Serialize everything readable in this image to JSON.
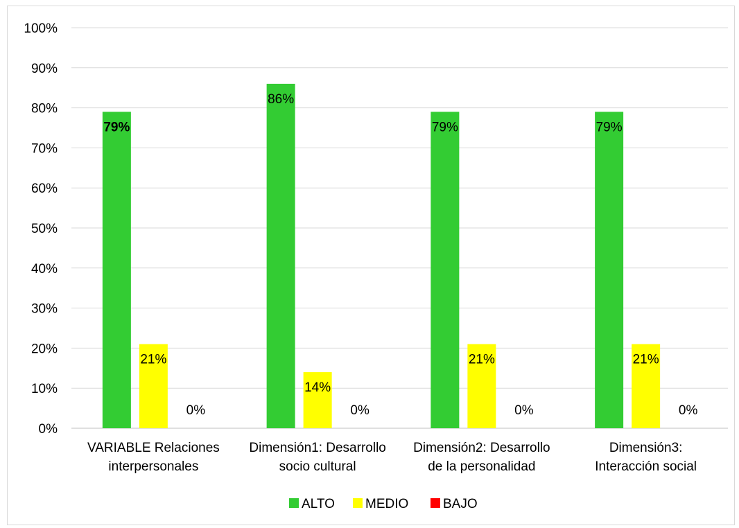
{
  "chart_data": {
    "type": "bar",
    "categories": [
      [
        "VARIABLE Relaciones",
        "interpersonales"
      ],
      [
        "Dimensión1: Desarrollo",
        "socio cultural"
      ],
      [
        "Dimensión2: Desarrollo",
        "de la personalidad"
      ],
      [
        "Dimensión3:",
        "Interacción social"
      ]
    ],
    "series": [
      {
        "name": "ALTO",
        "color": "#33cc33",
        "values": [
          79,
          86,
          79,
          79
        ],
        "labels": [
          "79%",
          "86%",
          "79%",
          "79%"
        ],
        "bold_labels": [
          true,
          false,
          false,
          false
        ]
      },
      {
        "name": "MEDIO",
        "color": "#ffff00",
        "values": [
          21,
          14,
          21,
          21
        ],
        "labels": [
          "21%",
          "14%",
          "21%",
          "21%"
        ],
        "bold_labels": [
          false,
          false,
          false,
          false
        ]
      },
      {
        "name": "BAJO",
        "color": "#ff0000",
        "values": [
          0,
          0,
          0,
          0
        ],
        "labels": [
          "0%",
          "0%",
          "0%",
          "0%"
        ],
        "bold_labels": [
          false,
          false,
          false,
          false
        ]
      }
    ],
    "ylim": [
      0,
      100
    ],
    "yticks": [
      "0%",
      "10%",
      "20%",
      "30%",
      "40%",
      "50%",
      "60%",
      "70%",
      "80%",
      "90%",
      "100%"
    ],
    "grid": true,
    "gridline_color": "#d9d9d9",
    "legend_position": "bottom",
    "title": "",
    "xlabel": "",
    "ylabel": ""
  }
}
